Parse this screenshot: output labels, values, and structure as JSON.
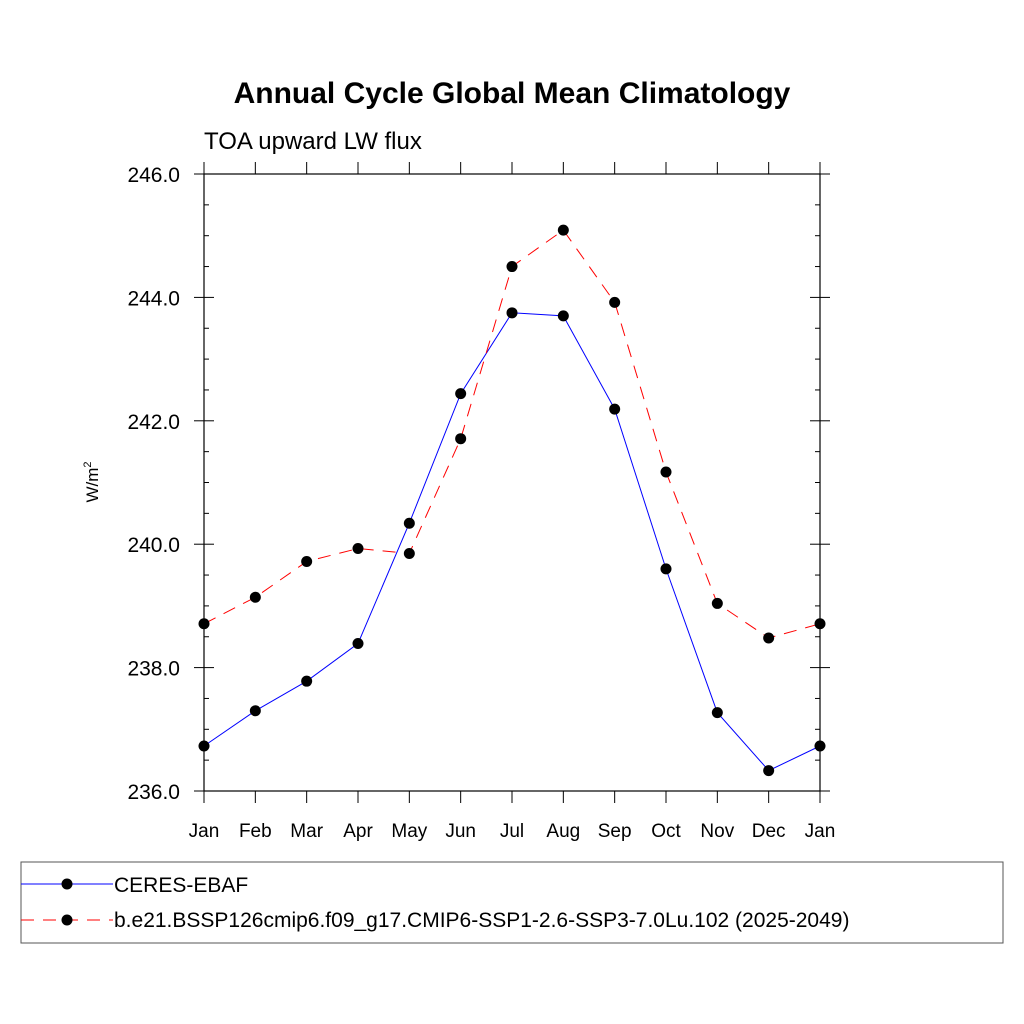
{
  "chart_data": {
    "type": "line",
    "title": "Annual Cycle Global Mean Climatology",
    "subtitle": "TOA upward LW flux",
    "ylabel": "W/m",
    "ylabel_superscript": "2",
    "xlabel": "",
    "categories": [
      "Jan",
      "Feb",
      "Mar",
      "Apr",
      "May",
      "Jun",
      "Jul",
      "Aug",
      "Sep",
      "Oct",
      "Nov",
      "Dec",
      "Jan"
    ],
    "ylim": [
      236.0,
      246.0
    ],
    "yticks": [
      "236.0",
      "238.0",
      "240.0",
      "242.0",
      "244.0",
      "246.0"
    ],
    "ytick_values": [
      236,
      238,
      240,
      242,
      244,
      246
    ],
    "grid": false,
    "legend_position": "bottom",
    "series": [
      {
        "name": "CERES-EBAF",
        "color": "#0000ff",
        "dash": "solid",
        "values": [
          236.73,
          237.3,
          237.78,
          238.39,
          240.34,
          242.44,
          243.75,
          243.7,
          242.19,
          239.6,
          237.27,
          236.33,
          236.73
        ]
      },
      {
        "name": "b.e21.BSSP126cmip6.f09_g17.CMIP6-SSP1-2.6-SSP3-7.0Lu.102 (2025-2049)",
        "color": "#ff0000",
        "dash": "dashed",
        "values": [
          238.71,
          239.14,
          239.72,
          239.93,
          239.85,
          241.71,
          244.5,
          245.09,
          243.92,
          241.17,
          239.04,
          238.48,
          238.71
        ]
      }
    ]
  }
}
